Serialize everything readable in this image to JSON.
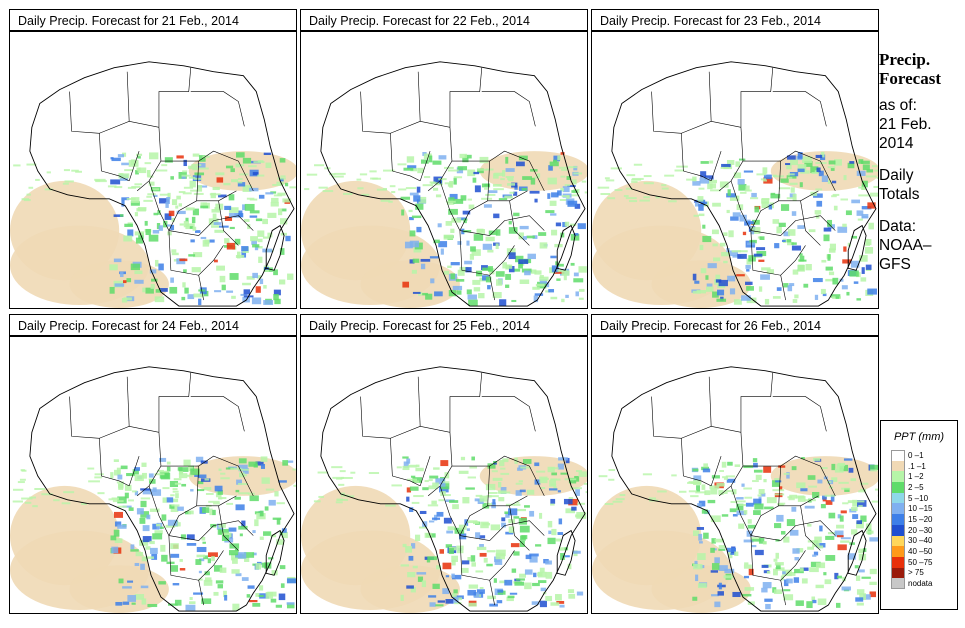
{
  "panels": [
    {
      "title": "Daily Precip. Forecast for  21 Feb., 2014"
    },
    {
      "title": "Daily Precip. Forecast for  22 Feb., 2014"
    },
    {
      "title": "Daily Precip. Forecast for  23 Feb., 2014"
    },
    {
      "title": "Daily Precip. Forecast for  24 Feb., 2014"
    },
    {
      "title": "Daily Precip. Forecast for  25 Feb., 2014"
    },
    {
      "title": "Daily Precip. Forecast for  26 Feb., 2014"
    }
  ],
  "side": {
    "line1": "Precip.",
    "line2": "Forecast",
    "asof": "as of:",
    "date1": "21 Feb.",
    "date2": "2014",
    "daily1": "Daily",
    "daily2": "Totals",
    "data1": "Data:",
    "data2": "NOAA–",
    "data3": "GFS"
  },
  "legend": {
    "title": "PPT (mm)",
    "items": [
      {
        "label": "0 –1",
        "color": "#ffffff"
      },
      {
        "label": ".1 –1",
        "color": "#f0d9b5"
      },
      {
        "label": "1 –2",
        "color": "#b6f5a8"
      },
      {
        "label": "2 –5",
        "color": "#5fdc6a"
      },
      {
        "label": "5 –10",
        "color": "#8ed8e8"
      },
      {
        "label": "10 –15",
        "color": "#7fb0f0"
      },
      {
        "label": "15 –20",
        "color": "#3d7fe8"
      },
      {
        "label": "20 –30",
        "color": "#1f4fd0"
      },
      {
        "label": "30 –40",
        "color": "#ffd75a"
      },
      {
        "label": "40 –50",
        "color": "#ff9a1a"
      },
      {
        "label": "50 –75",
        "color": "#e8300a"
      },
      {
        "label": "> 75",
        "color": "#9a1a0a"
      },
      {
        "label": "nodata",
        "color": "#c8c8c8"
      }
    ]
  }
}
